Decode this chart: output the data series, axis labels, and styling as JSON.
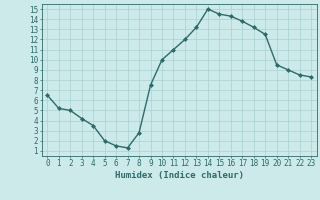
{
  "x": [
    0,
    1,
    2,
    3,
    4,
    5,
    6,
    7,
    8,
    9,
    10,
    11,
    12,
    13,
    14,
    15,
    16,
    17,
    18,
    19,
    20,
    21,
    22,
    23
  ],
  "y": [
    6.5,
    5.2,
    5.0,
    4.2,
    3.5,
    2.0,
    1.5,
    1.3,
    2.8,
    7.5,
    10.0,
    11.0,
    12.0,
    13.2,
    15.0,
    14.5,
    14.3,
    13.8,
    13.2,
    12.5,
    9.5,
    9.0,
    8.5,
    8.3
  ],
  "line_color": "#2d6b6b",
  "marker": "D",
  "marker_size": 2.0,
  "bg_color": "#cceaea",
  "grid_color": "#aad0d0",
  "xlabel": "Humidex (Indice chaleur)",
  "xlim": [
    -0.5,
    23.5
  ],
  "ylim": [
    0.5,
    15.5
  ],
  "xticks": [
    0,
    1,
    2,
    3,
    4,
    5,
    6,
    7,
    8,
    9,
    10,
    11,
    12,
    13,
    14,
    15,
    16,
    17,
    18,
    19,
    20,
    21,
    22,
    23
  ],
  "yticks": [
    1,
    2,
    3,
    4,
    5,
    6,
    7,
    8,
    9,
    10,
    11,
    12,
    13,
    14,
    15
  ],
  "xlabel_fontsize": 6.5,
  "tick_fontsize": 5.5,
  "axis_color": "#2d6b6b",
  "linewidth": 1.0
}
